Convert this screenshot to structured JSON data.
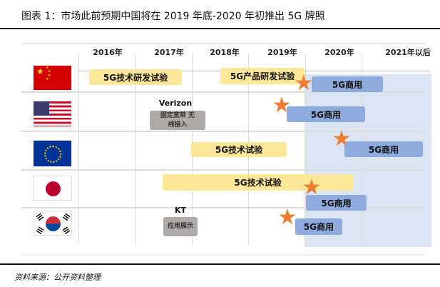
{
  "title": "图表 1：市场此前预期中国将在 2019 年底-2020 年初推出 5G 牌照",
  "years": [
    "2016年",
    "2017年",
    "2018年",
    "2019年",
    "2020年",
    "2021年以后"
  ],
  "rows": {
    "china": {
      "flag": "china-flag",
      "bars": [
        "5G技术研发试验",
        "5G产品研发试验",
        "5G商用"
      ]
    },
    "usa": {
      "flag": "usa-flag",
      "operator": "Verizon",
      "event": "固定宽带 无线接入",
      "bars": [
        "5G商用"
      ]
    },
    "eu": {
      "flag": "eu-flag",
      "bars": [
        "5G技术试验",
        "5G商用"
      ]
    },
    "japan": {
      "flag": "japan-flag",
      "bars": [
        "5G技术试验",
        "5G商用"
      ]
    },
    "korea": {
      "flag": "korea-flag",
      "operator": "KT",
      "event": "应用展示",
      "bars": [
        "5G商用"
      ]
    }
  },
  "colors": {
    "trial": "#fde89a",
    "commercial": "#8faadc",
    "event": "#aeaaaa",
    "star": "#ed7d31",
    "shade": "#dce5f3"
  },
  "source": "资料来源：公开资料整理"
}
